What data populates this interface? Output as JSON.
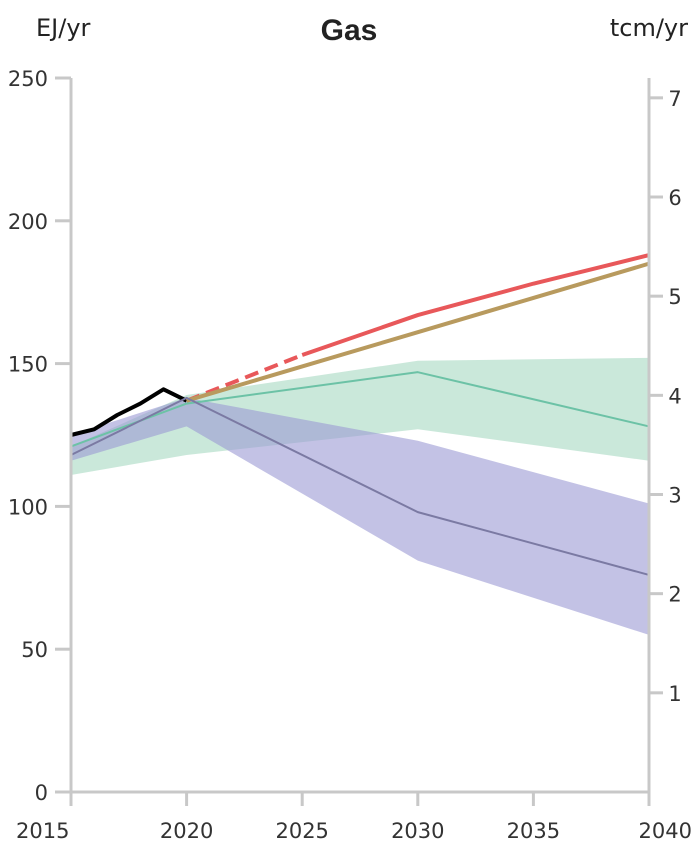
{
  "chart_data": {
    "type": "line",
    "title": "Gas",
    "ylabel_left": "EJ/yr",
    "ylabel_right": "tcm/yr",
    "xlim": [
      2015,
      2040
    ],
    "ylim": [
      0,
      250
    ],
    "ylim_right": [
      0,
      7.2
    ],
    "x_ticks": [
      2015,
      2020,
      2025,
      2030,
      2035,
      2040
    ],
    "y_ticks_left": [
      0,
      50,
      100,
      150,
      200,
      250
    ],
    "y_ticks_right": [
      1,
      2,
      3,
      4,
      5,
      6,
      7
    ],
    "bands": [
      {
        "color": "#a6d9c2",
        "opacity": 0.6,
        "x": [
          2015,
          2020,
          2030,
          2040
        ],
        "upper": [
          121,
          139,
          151,
          152
        ],
        "lower": [
          111,
          118,
          127,
          116
        ]
      },
      {
        "color": "#9b9ad4",
        "opacity": 0.6,
        "x": [
          2015,
          2020,
          2030,
          2040
        ],
        "upper": [
          125,
          138,
          123,
          101
        ],
        "lower": [
          116,
          128,
          81,
          55
        ]
      }
    ],
    "series": [
      {
        "color": "#000000",
        "style": "solid",
        "x": [
          2015,
          2016,
          2017,
          2018,
          2019,
          2020
        ],
        "values": [
          125,
          127,
          132,
          136,
          141,
          137
        ]
      },
      {
        "color": "#e8585a",
        "style": "dashed",
        "x": [
          2020,
          2025
        ],
        "values": [
          137,
          153
        ]
      },
      {
        "color": "#e8585a",
        "style": "solid",
        "x": [
          2025,
          2030,
          2035,
          2040
        ],
        "values": [
          153,
          167,
          178,
          188
        ]
      },
      {
        "color": "#b89a5e",
        "style": "solid",
        "x": [
          2020,
          2025,
          2030,
          2035,
          2040
        ],
        "values": [
          137,
          149,
          161,
          173,
          185
        ]
      },
      {
        "color": "#6cc2a6",
        "style": "solid",
        "x": [
          2015,
          2020,
          2030,
          2040
        ],
        "values": [
          121,
          136,
          147,
          128
        ]
      },
      {
        "color": "#7b7aa3",
        "style": "solid",
        "x": [
          2015,
          2020,
          2030,
          2040
        ],
        "values": [
          118,
          138,
          98,
          76
        ]
      }
    ]
  }
}
